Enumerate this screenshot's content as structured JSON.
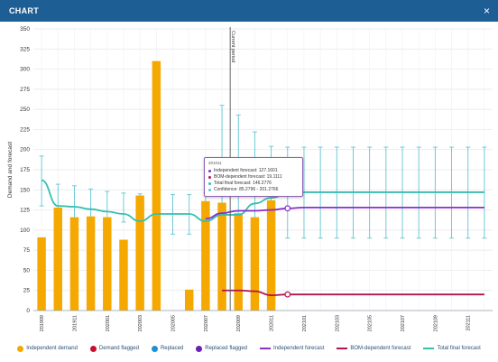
{
  "window": {
    "title": "CHART",
    "close_glyph": "×"
  },
  "colors": {
    "independent_demand": "#f5a800",
    "demand_flagged": "#c8102e",
    "replaced": "#1f8fd6",
    "replaced_flagged": "#6a1fb8",
    "independent_forecast": "#8b2fc9",
    "bom_forecast": "#b0154f",
    "total_forecast": "#35bfae",
    "confidence": "#5fc6d2",
    "current_period": "#555555"
  },
  "legend": [
    {
      "label": "Independent demand",
      "kind": "dot",
      "color_key": "independent_demand"
    },
    {
      "label": "Demand flagged",
      "kind": "dot",
      "color_key": "demand_flagged"
    },
    {
      "label": "Replaced",
      "kind": "dot",
      "color_key": "replaced"
    },
    {
      "label": "Replaced flagged",
      "kind": "dot",
      "color_key": "replaced_flagged"
    },
    {
      "label": "Independent forecast",
      "kind": "line",
      "color_key": "independent_forecast"
    },
    {
      "label": "BOM-dependent forecast",
      "kind": "line",
      "color_key": "bom_forecast"
    },
    {
      "label": "Total final forecast",
      "kind": "line",
      "color_key": "total_forecast"
    }
  ],
  "tooltip": {
    "header": "201011",
    "rows": [
      {
        "text": "Independent forecast: 127.1601",
        "color_key": "independent_forecast"
      },
      {
        "text": "BOM-dependent forecast: 19.1111",
        "color_key": "bom_forecast"
      },
      {
        "text": "Total final forecast: 146.2776",
        "color_key": "total_forecast"
      },
      {
        "text": "Confidence: 85.2796 - 201.2766",
        "color_key": "confidence"
      }
    ]
  },
  "chart_data": {
    "type": "bar",
    "ylabel": "Demand and forecast",
    "ylim": [
      0,
      350
    ],
    "yticks": [
      0,
      25,
      50,
      75,
      100,
      125,
      150,
      175,
      200,
      225,
      250,
      275,
      300,
      325,
      350
    ],
    "grid": true,
    "legend_position": "bottom",
    "current_period_label": "Current period",
    "current_period_after_index": 11,
    "x_tick_labels": [
      "201909",
      "201911",
      "202001",
      "202003",
      "202005",
      "202007",
      "202009",
      "202011",
      "202101",
      "202103",
      "202105",
      "202107",
      "202109",
      "202111",
      "202201"
    ],
    "series": [
      {
        "name": "Independent demand",
        "kind": "bar",
        "values": [
          91,
          128,
          116,
          117,
          116,
          88,
          143,
          310,
          null,
          26,
          136,
          134,
          121,
          116,
          137
        ]
      },
      {
        "name": "Total final forecast",
        "kind": "line",
        "values": [
          162,
          130,
          129,
          126,
          123,
          120,
          111,
          120,
          120,
          120,
          111,
          119,
          119,
          133,
          140,
          145,
          147,
          147,
          147,
          147,
          147,
          147,
          147,
          147,
          147,
          147,
          147,
          147
        ]
      },
      {
        "name": "Independent forecast",
        "kind": "line",
        "start_index": 10,
        "values": [
          114,
          121,
          124,
          124,
          125,
          127,
          128,
          128,
          128,
          128,
          128,
          128,
          128,
          128,
          128,
          128,
          128,
          128
        ]
      },
      {
        "name": "BOM-dependent forecast",
        "kind": "line",
        "start_index": 11,
        "values": [
          25,
          25,
          24,
          19,
          20,
          20,
          20,
          20,
          20,
          20,
          20,
          20,
          20,
          20,
          20,
          20,
          20
        ]
      }
    ],
    "confidence_interval": {
      "start_index": 0,
      "low": [
        130,
        118,
        112,
        112,
        112,
        110,
        110,
        95,
        95,
        95,
        95,
        96,
        86,
        95,
        97,
        90,
        90,
        90,
        90,
        90,
        90,
        90,
        90,
        90,
        90,
        90,
        90,
        90
      ],
      "high": [
        192,
        157,
        155,
        151,
        148,
        146,
        145,
        144,
        144,
        144,
        146,
        255,
        243,
        222,
        204,
        203,
        203,
        203,
        203,
        203,
        203,
        203,
        203,
        203,
        203,
        203,
        203,
        203
      ]
    },
    "highlight_index": 15
  }
}
